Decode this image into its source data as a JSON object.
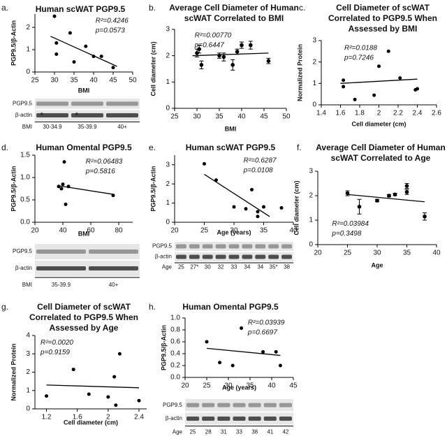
{
  "chart_data": [
    {
      "type": "scatter",
      "panel": "a.",
      "title": [
        "Human scWAT PGP9.5"
      ],
      "x_label": "BMI",
      "y_label": "PGP9.5/β-Actin",
      "x": [
        30,
        30.5,
        30.5,
        34,
        35,
        38,
        40,
        42,
        45
      ],
      "values": [
        2.5,
        1.3,
        0.8,
        1.75,
        0.45,
        1.15,
        0.7,
        0.7,
        0.2
      ],
      "trend_line": {
        "x": [
          29,
          46
        ],
        "values": [
          1.6,
          0.25
        ]
      },
      "xlim": [
        25,
        50
      ],
      "ylim": [
        0,
        2.6
      ],
      "xticks": [
        25,
        30,
        35,
        40,
        45,
        50
      ],
      "yticks": [
        0,
        1,
        2
      ],
      "annotations": [
        "R²=0.4246",
        "p=0.0573"
      ],
      "color": "#000000",
      "blot": {
        "rows": [
          "PGP9.5",
          "β-actin"
        ],
        "lane_title": "BMI",
        "lanes": [
          "30-34.9",
          "35-39.9",
          "40+"
        ],
        "markers": [
          "*",
          "*"
        ]
      }
    },
    {
      "type": "scatter",
      "panel": "b.",
      "title": [
        "Average Cell Diameter of Human",
        "scWAT Correlated to BMI"
      ],
      "x_label": "BMI",
      "y_label": "Cell diameter (cm)",
      "x": [
        30,
        30.5,
        31,
        35,
        36,
        38,
        39,
        40,
        42,
        46
      ],
      "values": [
        2.1,
        2.25,
        1.65,
        2.0,
        1.95,
        1.65,
        2.15,
        2.4,
        2.4,
        1.8
      ],
      "errors": [
        0.15,
        0.15,
        0.15,
        0.1,
        0.15,
        0.2,
        0.1,
        0.12,
        0.15,
        0.1
      ],
      "trend_line": {
        "x": [
          29,
          46
        ],
        "values": [
          2.0,
          2.1
        ]
      },
      "xlim": [
        25,
        50
      ],
      "ylim": [
        0,
        3
      ],
      "xticks": [
        25,
        30,
        35,
        40,
        45,
        50
      ],
      "yticks": [
        0,
        1,
        2,
        3
      ],
      "annotations": [
        "R²=0.00770",
        "p=0.6447"
      ],
      "color": "#000000"
    },
    {
      "type": "scatter",
      "panel": "c.",
      "title": [
        "Cell Diameter of scWAT",
        "Correlated to PGP9.5 When",
        "Assessed by BMI"
      ],
      "x_label": "Cell diameter (cm)",
      "y_label": "Normalized Protein",
      "x": [
        1.63,
        1.63,
        1.75,
        1.95,
        2.0,
        2.1,
        2.22,
        2.38,
        2.4
      ],
      "values": [
        1.15,
        0.85,
        0.25,
        0.45,
        1.8,
        2.5,
        1.25,
        0.7,
        0.75
      ],
      "trend_line": {
        "x": [
          1.6,
          2.4
        ],
        "values": [
          1.0,
          1.2
        ]
      },
      "xlim": [
        1.4,
        2.6
      ],
      "ylim": [
        0,
        3
      ],
      "xticks": [
        1.4,
        1.6,
        1.8,
        2.0,
        2.2,
        2.4,
        2.6
      ],
      "yticks": [
        0,
        1,
        2,
        3
      ],
      "annotations": [
        "R²=0.0188",
        "p=0.7246"
      ],
      "color": "#000000"
    },
    {
      "type": "scatter",
      "panel": "d.",
      "title": [
        "Human Omental PGP9.5"
      ],
      "x_label": "BMI",
      "y_label": "PGP9.5/β-Actin",
      "x": [
        37,
        39,
        40,
        41,
        42,
        44,
        76
      ],
      "values": [
        0.8,
        0.75,
        0.85,
        1.35,
        0.4,
        0.8,
        0.6
      ],
      "trend_line": {
        "x": [
          36,
          77
        ],
        "values": [
          0.82,
          0.62
        ]
      },
      "xlim": [
        20,
        90
      ],
      "ylim": [
        0,
        1.5
      ],
      "xticks": [
        20,
        40,
        60,
        80
      ],
      "yticks": [
        {
          "value": 0,
          "label": "0.0"
        },
        {
          "value": 0.5,
          "label": "0.5"
        },
        {
          "value": 1,
          "label": "1.0"
        },
        {
          "value": 1.5,
          "label": "1.5"
        }
      ],
      "annotations": [
        "R²=0.06483",
        "p=0.5816"
      ],
      "color": "#000000",
      "blot": {
        "rows": [
          "PGP9.5",
          "β-actin"
        ],
        "lane_title": "BMI",
        "lanes": [
          "35-39.9",
          "40+"
        ]
      }
    },
    {
      "type": "scatter",
      "panel": "e.",
      "title": [
        "Human scWAT PGP9.5"
      ],
      "x_label": "Age (years)",
      "y_label": "PGP9.5/β-Actin",
      "x": [
        25,
        27,
        30,
        32,
        33,
        34,
        34,
        35,
        38
      ],
      "values": [
        3.05,
        2.2,
        0.8,
        0.7,
        1.7,
        0.3,
        0.55,
        0.8,
        0.75
      ],
      "trend_line": {
        "x": [
          25,
          36
        ],
        "values": [
          2.5,
          0.3
        ]
      },
      "xlim": [
        20,
        40
      ],
      "ylim": [
        0,
        3.5
      ],
      "xticks": [
        20,
        25,
        30,
        35,
        40
      ],
      "yticks": [
        0,
        1,
        2,
        3
      ],
      "annotations": [
        "R²=0.6287",
        "p=0.0108"
      ],
      "color": "#000000",
      "blot": {
        "rows": [
          "PGP9.5",
          "β-actin"
        ],
        "lane_title": "Age",
        "lanes": [
          "25",
          "27*",
          "30",
          "32",
          "33",
          "34",
          "34",
          "35*",
          "38"
        ]
      }
    },
    {
      "type": "scatter",
      "panel": "f.",
      "title": [
        "Average Cell Diameter of Human",
        "scWAT Correlated to Age"
      ],
      "x_label": "Age",
      "y_label": "Cell diameter (cm)",
      "x": [
        25,
        27,
        30,
        32,
        33,
        35,
        35,
        38
      ],
      "values": [
        2.1,
        1.55,
        1.8,
        2.0,
        2.05,
        2.4,
        2.15,
        1.15
      ],
      "errors": [
        0.1,
        0.3,
        0.05,
        0.05,
        0.05,
        0.1,
        0.1,
        0.15
      ],
      "trend_line": {
        "x": [
          25,
          38
        ],
        "values": [
          2.05,
          1.75
        ]
      },
      "xlim": [
        20,
        40
      ],
      "ylim": [
        0,
        3
      ],
      "xticks": [
        20,
        25,
        30,
        35,
        40
      ],
      "yticks": [
        0,
        1,
        2,
        3
      ],
      "annotations": [
        "R²=0.03984",
        "p=0.3498"
      ],
      "color": "#000000"
    },
    {
      "type": "scatter",
      "panel": "g.",
      "title": [
        "Cell Diameter of scWAT",
        "Correlated to PGP9.5 When",
        "Assessed by Age"
      ],
      "x_label": "Cell diameter (cm)",
      "y_label": "Normalized Protein",
      "x": [
        1.2,
        1.55,
        1.75,
        2.0,
        2.08,
        2.1,
        2.15,
        2.4
      ],
      "values": [
        0.7,
        2.15,
        0.8,
        0.65,
        1.75,
        0.2,
        3.0,
        0.45
      ],
      "trend_line": {
        "x": [
          1.2,
          2.4
        ],
        "values": [
          1.3,
          1.15
        ]
      },
      "xlim": [
        1.05,
        2.5
      ],
      "ylim": [
        0,
        4
      ],
      "xticks": [
        1.2,
        1.6,
        2.0,
        2.4
      ],
      "yticks": [
        0,
        1,
        2,
        3,
        4
      ],
      "annotations": [
        "R²=0.0020",
        "p=0.9159"
      ],
      "color": "#000000"
    },
    {
      "type": "scatter",
      "panel": "h.",
      "title": [
        "Human Omental PGP9.5"
      ],
      "x_label": "Age (years)",
      "y_label": "PGP9.5/β-Actin",
      "x": [
        25,
        28,
        31,
        33,
        38,
        41,
        42
      ],
      "values": [
        0.6,
        0.25,
        0.2,
        0.83,
        0.43,
        0.43,
        0.2
      ],
      "trend_line": {
        "x": [
          25,
          42
        ],
        "values": [
          0.49,
          0.37
        ]
      },
      "xlim": [
        20,
        45
      ],
      "ylim": [
        0,
        1
      ],
      "xticks": [
        20,
        25,
        30,
        35,
        40,
        45
      ],
      "yticks": [
        {
          "value": 0,
          "label": "0.0"
        },
        {
          "value": 0.2,
          "label": "0.2"
        },
        {
          "value": 0.4,
          "label": "0.4"
        },
        {
          "value": 0.6,
          "label": "0.6"
        },
        {
          "value": 0.8,
          "label": "0.8"
        },
        {
          "value": 1,
          "label": "1.0"
        }
      ],
      "annotations": [
        "R²=0.03939",
        "p=0.6697"
      ],
      "color": "#000000",
      "blot": {
        "rows": [
          "PGP9.5",
          "β-actin"
        ],
        "lane_title": "Age",
        "lanes": [
          "25",
          "28",
          "31",
          "33",
          "38",
          "41",
          "42"
        ]
      }
    }
  ]
}
